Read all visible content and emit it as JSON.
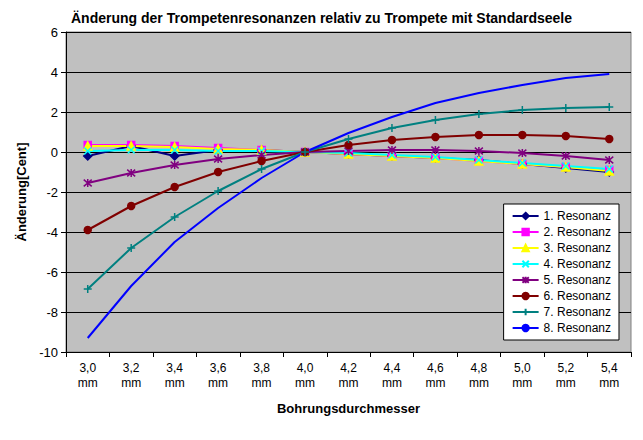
{
  "chart_data": {
    "type": "line",
    "title": "Änderung der Trompetenresonanzen relativ zu Trompete mit Standardseele",
    "x_label": "Bohrungsdurchmesser",
    "y_label": "Änderung[Cent]",
    "categories": [
      "3,0\nmm",
      "3,2\nmm",
      "3,4\nmm",
      "3,6\nmm",
      "3,8\nmm",
      "4,0\nmm",
      "4,2\nmm",
      "4,4\nmm",
      "4,6\nmm",
      "4,8\nmm",
      "5,0\nmm",
      "5,2\nmm",
      "5,4\nmm"
    ],
    "ylim": [
      -10,
      6
    ],
    "yticks": [
      -10,
      -8,
      -6,
      -4,
      -2,
      0,
      2,
      4,
      6
    ],
    "grid": true,
    "legend": "lower right",
    "series": [
      {
        "name": "1. Resonanz",
        "color": "#000080",
        "marker": "diamond",
        "values": [
          -0.2,
          0.3,
          -0.2,
          0.1,
          0.1,
          0,
          -0.1,
          -0.2,
          -0.3,
          -0.4,
          -0.6,
          -0.8,
          -1.0
        ]
      },
      {
        "name": "2. Resonanz",
        "color": "#ff00ff",
        "marker": "square",
        "values": [
          0.35,
          0.35,
          0.3,
          0.2,
          0.1,
          0,
          -0.1,
          -0.2,
          -0.3,
          -0.45,
          -0.6,
          -0.75,
          -0.9
        ]
      },
      {
        "name": "3. Resonanz",
        "color": "#ffff00",
        "marker": "triangle",
        "values": [
          0.3,
          0.3,
          0.25,
          0.15,
          0.1,
          0,
          -0.1,
          -0.2,
          -0.3,
          -0.45,
          -0.6,
          -0.75,
          -0.95
        ]
      },
      {
        "name": "4. Resonanz",
        "color": "#00ffff",
        "marker": "x",
        "values": [
          0.05,
          0.1,
          0.1,
          0.05,
          0.05,
          0,
          -0.05,
          -0.15,
          -0.25,
          -0.4,
          -0.55,
          -0.7,
          -0.85
        ]
      },
      {
        "name": "5. Resonanz",
        "color": "#800080",
        "marker": "star",
        "values": [
          -1.55,
          -1.05,
          -0.65,
          -0.35,
          -0.15,
          0,
          0.05,
          0.1,
          0.1,
          0.05,
          -0.05,
          -0.2,
          -0.4
        ]
      },
      {
        "name": "6. Resonanz",
        "color": "#800000",
        "marker": "circle",
        "values": [
          -3.9,
          -2.7,
          -1.75,
          -1.0,
          -0.45,
          0,
          0.35,
          0.6,
          0.75,
          0.85,
          0.85,
          0.8,
          0.65
        ]
      },
      {
        "name": "7. Resonanz",
        "color": "#008080",
        "marker": "plus",
        "values": [
          -6.85,
          -4.8,
          -3.25,
          -1.95,
          -0.85,
          0,
          0.65,
          1.2,
          1.6,
          1.9,
          2.1,
          2.2,
          2.25
        ]
      },
      {
        "name": "8. Resonanz",
        "color": "#0000ff",
        "marker": "none",
        "values": [
          -9.3,
          -6.7,
          -4.5,
          -2.8,
          -1.3,
          0,
          0.95,
          1.75,
          2.45,
          2.95,
          3.35,
          3.7,
          3.9
        ]
      }
    ]
  }
}
